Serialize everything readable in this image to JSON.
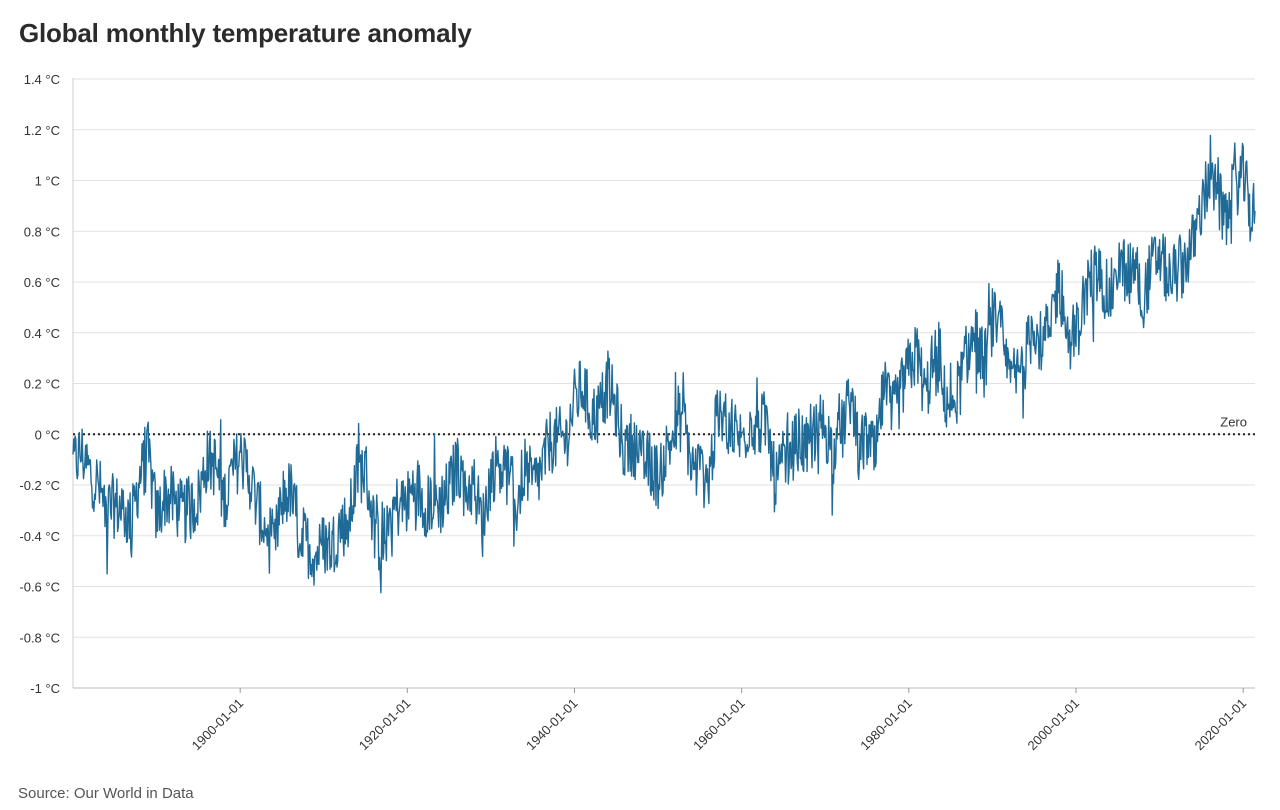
{
  "chart_data": {
    "type": "line",
    "title": "Global monthly temperature anomaly",
    "source": "Source: Our World in Data",
    "xlabel": "",
    "ylabel": "",
    "xlim": [
      "1880-01-01",
      "2021-06-01"
    ],
    "ylim": [
      -1,
      1.4
    ],
    "grid": "horizontal",
    "y_ticks": [
      {
        "value": 1.4,
        "label": "1.4 °C"
      },
      {
        "value": 1.2,
        "label": "1.2 °C"
      },
      {
        "value": 1.0,
        "label": "1 °C"
      },
      {
        "value": 0.8,
        "label": "0.8 °C"
      },
      {
        "value": 0.6,
        "label": "0.6 °C"
      },
      {
        "value": 0.4,
        "label": "0.4 °C"
      },
      {
        "value": 0.2,
        "label": "0.2 °C"
      },
      {
        "value": 0.0,
        "label": "0 °C"
      },
      {
        "value": -0.2,
        "label": "-0.2 °C"
      },
      {
        "value": -0.4,
        "label": "-0.4 °C"
      },
      {
        "value": -0.6,
        "label": "-0.6 °C"
      },
      {
        "value": -0.8,
        "label": "-0.8 °C"
      },
      {
        "value": -1.0,
        "label": "-1 °C"
      }
    ],
    "x_ticks": [
      "1900-01-01",
      "1920-01-01",
      "1940-01-01",
      "1960-01-01",
      "1980-01-01",
      "2000-01-01",
      "2020-01-01"
    ],
    "reference_line": {
      "value": 0,
      "label": "Zero",
      "style": "dotted"
    },
    "series": [
      {
        "color": "#1f6a96",
        "points": [
          [
            "1880-01-01",
            -0.12
          ],
          [
            "1881-01-01",
            -0.07
          ],
          [
            "1882-01-01",
            -0.15
          ],
          [
            "1883-01-01",
            -0.2
          ],
          [
            "1884-01-01",
            -0.3
          ],
          [
            "1885-01-01",
            -0.28
          ],
          [
            "1886-01-01",
            -0.3
          ],
          [
            "1887-01-01",
            -0.35
          ],
          [
            "1888-01-01",
            -0.16
          ],
          [
            "1889-01-01",
            -0.08
          ],
          [
            "1890-01-01",
            -0.33
          ],
          [
            "1891-01-01",
            -0.24
          ],
          [
            "1892-01-01",
            -0.26
          ],
          [
            "1893-01-01",
            -0.31
          ],
          [
            "1894-01-01",
            -0.3
          ],
          [
            "1895-01-01",
            -0.25
          ],
          [
            "1896-01-01",
            -0.1
          ],
          [
            "1897-01-01",
            -0.12
          ],
          [
            "1898-01-01",
            -0.26
          ],
          [
            "1899-01-01",
            -0.16
          ],
          [
            "1900-01-01",
            -0.08
          ],
          [
            "1901-01-01",
            -0.15
          ],
          [
            "1902-01-01",
            -0.28
          ],
          [
            "1903-01-01",
            -0.37
          ],
          [
            "1904-01-01",
            -0.47
          ],
          [
            "1905-01-01",
            -0.26
          ],
          [
            "1906-01-01",
            -0.22
          ],
          [
            "1907-01-01",
            -0.39
          ],
          [
            "1908-01-01",
            -0.43
          ],
          [
            "1909-01-01",
            -0.48
          ],
          [
            "1910-01-01",
            -0.43
          ],
          [
            "1911-01-01",
            -0.44
          ],
          [
            "1912-01-01",
            -0.36
          ],
          [
            "1913-01-01",
            -0.35
          ],
          [
            "1914-01-01",
            -0.15
          ],
          [
            "1915-01-01",
            -0.14
          ],
          [
            "1916-01-01",
            -0.36
          ],
          [
            "1917-01-01",
            -0.46
          ],
          [
            "1918-01-01",
            -0.3
          ],
          [
            "1919-01-01",
            -0.28
          ],
          [
            "1920-01-01",
            -0.27
          ],
          [
            "1921-01-01",
            -0.19
          ],
          [
            "1922-01-01",
            -0.28
          ],
          [
            "1923-01-01",
            -0.26
          ],
          [
            "1924-01-01",
            -0.27
          ],
          [
            "1925-01-01",
            -0.22
          ],
          [
            "1926-01-01",
            -0.11
          ],
          [
            "1927-01-01",
            -0.22
          ],
          [
            "1928-01-01",
            -0.2
          ],
          [
            "1929-01-01",
            -0.36
          ],
          [
            "1930-01-01",
            -0.16
          ],
          [
            "1931-01-01",
            -0.1
          ],
          [
            "1932-01-01",
            -0.16
          ],
          [
            "1933-01-01",
            -0.29
          ],
          [
            "1934-01-01",
            -0.13
          ],
          [
            "1935-01-01",
            -0.2
          ],
          [
            "1936-01-01",
            -0.15
          ],
          [
            "1937-01-01",
            -0.03
          ],
          [
            "1938-01-01",
            -0.02
          ],
          [
            "1939-01-01",
            -0.02
          ],
          [
            "1940-01-01",
            0.13
          ],
          [
            "1941-01-01",
            0.19
          ],
          [
            "1942-01-01",
            0.07
          ],
          [
            "1943-01-01",
            0.09
          ],
          [
            "1944-01-01",
            0.2
          ],
          [
            "1945-01-01",
            0.09
          ],
          [
            "1946-01-01",
            -0.07
          ],
          [
            "1947-01-01",
            -0.03
          ],
          [
            "1948-01-01",
            -0.11
          ],
          [
            "1949-01-01",
            -0.11
          ],
          [
            "1950-01-01",
            -0.17
          ],
          [
            "1951-01-01",
            -0.07
          ],
          [
            "1952-01-01",
            0.01
          ],
          [
            "1953-01-01",
            0.08
          ],
          [
            "1954-01-01",
            -0.13
          ],
          [
            "1955-01-01",
            -0.14
          ],
          [
            "1956-01-01",
            -0.19
          ],
          [
            "1957-01-01",
            0.05
          ],
          [
            "1958-01-01",
            0.06
          ],
          [
            "1959-01-01",
            0.03
          ],
          [
            "1960-01-01",
            -0.03
          ],
          [
            "1961-01-01",
            0.06
          ],
          [
            "1962-01-01",
            0.03
          ],
          [
            "1963-01-01",
            0.05
          ],
          [
            "1964-01-01",
            -0.2
          ],
          [
            "1965-01-01",
            -0.11
          ],
          [
            "1966-01-01",
            -0.06
          ],
          [
            "1967-01-01",
            -0.02
          ],
          [
            "1968-01-01",
            -0.08
          ],
          [
            "1969-01-01",
            0.05
          ],
          [
            "1970-01-01",
            0.03
          ],
          [
            "1971-01-01",
            -0.08
          ],
          [
            "1972-01-01",
            0.01
          ],
          [
            "1973-01-01",
            0.16
          ],
          [
            "1974-01-01",
            -0.07
          ],
          [
            "1975-01-01",
            -0.01
          ],
          [
            "1976-01-01",
            -0.1
          ],
          [
            "1977-01-01",
            0.18
          ],
          [
            "1978-01-01",
            0.07
          ],
          [
            "1979-01-01",
            0.16
          ],
          [
            "1980-01-01",
            0.26
          ],
          [
            "1981-01-01",
            0.32
          ],
          [
            "1982-01-01",
            0.14
          ],
          [
            "1983-01-01",
            0.31
          ],
          [
            "1984-01-01",
            0.16
          ],
          [
            "1985-01-01",
            0.12
          ],
          [
            "1986-01-01",
            0.18
          ],
          [
            "1987-01-01",
            0.32
          ],
          [
            "1988-01-01",
            0.39
          ],
          [
            "1989-01-01",
            0.27
          ],
          [
            "1990-01-01",
            0.45
          ],
          [
            "1991-01-01",
            0.4
          ],
          [
            "1992-01-01",
            0.22
          ],
          [
            "1993-01-01",
            0.23
          ],
          [
            "1994-01-01",
            0.31
          ],
          [
            "1995-01-01",
            0.45
          ],
          [
            "1996-01-01",
            0.33
          ],
          [
            "1997-01-01",
            0.46
          ],
          [
            "1998-01-01",
            0.61
          ],
          [
            "1999-01-01",
            0.38
          ],
          [
            "2000-01-01",
            0.39
          ],
          [
            "2001-01-01",
            0.54
          ],
          [
            "2002-01-01",
            0.63
          ],
          [
            "2003-01-01",
            0.62
          ],
          [
            "2004-01-01",
            0.53
          ],
          [
            "2005-01-01",
            0.68
          ],
          [
            "2006-01-01",
            0.64
          ],
          [
            "2007-01-01",
            0.66
          ],
          [
            "2008-01-01",
            0.54
          ],
          [
            "2009-01-01",
            0.65
          ],
          [
            "2010-01-01",
            0.72
          ],
          [
            "2011-01-01",
            0.61
          ],
          [
            "2012-01-01",
            0.64
          ],
          [
            "2013-01-01",
            0.68
          ],
          [
            "2014-01-01",
            0.75
          ],
          [
            "2015-01-01",
            0.9
          ],
          [
            "2016-01-01",
            1.01
          ],
          [
            "2017-01-01",
            0.92
          ],
          [
            "2018-01-01",
            0.85
          ],
          [
            "2019-01-01",
            0.98
          ],
          [
            "2020-01-01",
            1.02
          ],
          [
            "2021-01-01",
            0.85
          ],
          [
            "2021-06-01",
            0.88
          ]
        ]
      }
    ]
  }
}
